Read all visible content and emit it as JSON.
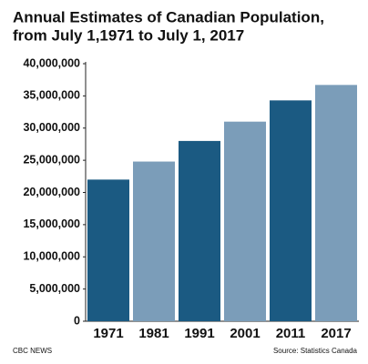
{
  "chart_data": {
    "type": "bar",
    "title": [
      "Annual Estimates of Canadian Population,",
      "from July 1,1971 to July 1, 2017"
    ],
    "categories": [
      "1971",
      "1981",
      "1991",
      "2001",
      "2011",
      "2017"
    ],
    "values": [
      22000000,
      24800000,
      28000000,
      31000000,
      34300000,
      36700000
    ],
    "colors": [
      "#1b5a82",
      "#7b9db9",
      "#1b5a82",
      "#7b9db9",
      "#1b5a82",
      "#7b9db9"
    ],
    "ylim": [
      0,
      40000000
    ],
    "yticks": [
      0,
      {
        "value": 5000000,
        "label": "5,000,000"
      },
      {
        "value": 10000000,
        "label": "10,000,000"
      },
      {
        "value": 15000000,
        "label": "15,000,000"
      },
      {
        "value": 20000000,
        "label": "20,000,000"
      },
      {
        "value": 25000000,
        "label": "25,000,000"
      },
      {
        "value": 30000000,
        "label": "30,000,000"
      },
      {
        "value": 35000000,
        "label": "35,000,000"
      },
      {
        "value": 40000000,
        "label": "40,000,000"
      }
    ],
    "grid": false,
    "footer_left": "CBC NEWS",
    "source": "Source: Statistics Canada"
  }
}
